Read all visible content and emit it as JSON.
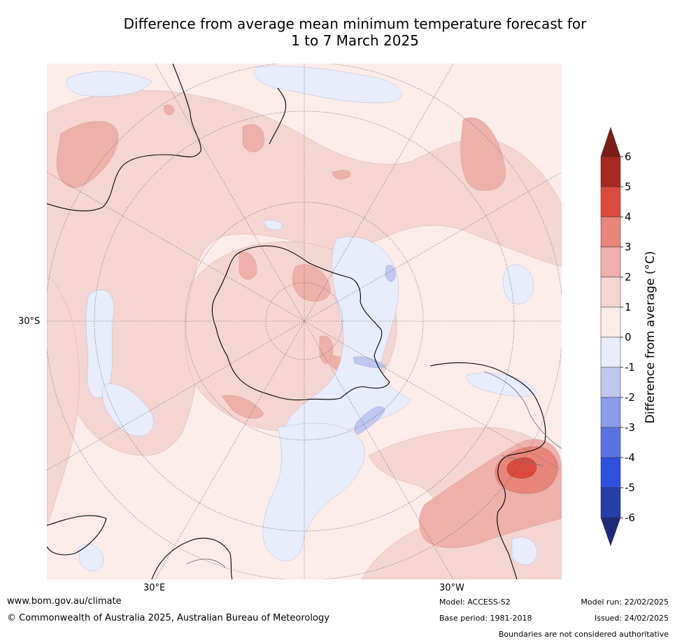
{
  "title_line1": "Difference from average mean minimum temperature forecast for",
  "title_line2": "1 to 7 March 2025",
  "map": {
    "lat_label": "30°S",
    "lon_labels": [
      "30°E",
      "30°W"
    ]
  },
  "colorbar": {
    "label": "Difference from average (°C)",
    "ticks": [
      "6",
      "5",
      "4",
      "3",
      "2",
      "1",
      "0",
      "-1",
      "-2",
      "-3",
      "-4",
      "-5",
      "-6"
    ],
    "colors": [
      "#7a1e17",
      "#a82a22",
      "#d94a3e",
      "#e8867c",
      "#eeb0aa",
      "#f5d5d1",
      "#fbecea",
      "#e8ecfb",
      "#c0c8f2",
      "#8a9cea",
      "#5b73e2",
      "#2f4fdd",
      "#263ea8",
      "#1f2a7a"
    ]
  },
  "footer": {
    "website": "www.bom.gov.au/climate",
    "copyright": "© Commonwealth of Australia 2025, Australian Bureau of Meteorology",
    "model": "Model: ACCESS-S2",
    "base_period": "Base period: 1981-2018",
    "model_run": "Model run: 22/02/2025",
    "issued": "Issued: 24/02/2025",
    "disclaimer": "Boundaries are not considered authoritative"
  }
}
